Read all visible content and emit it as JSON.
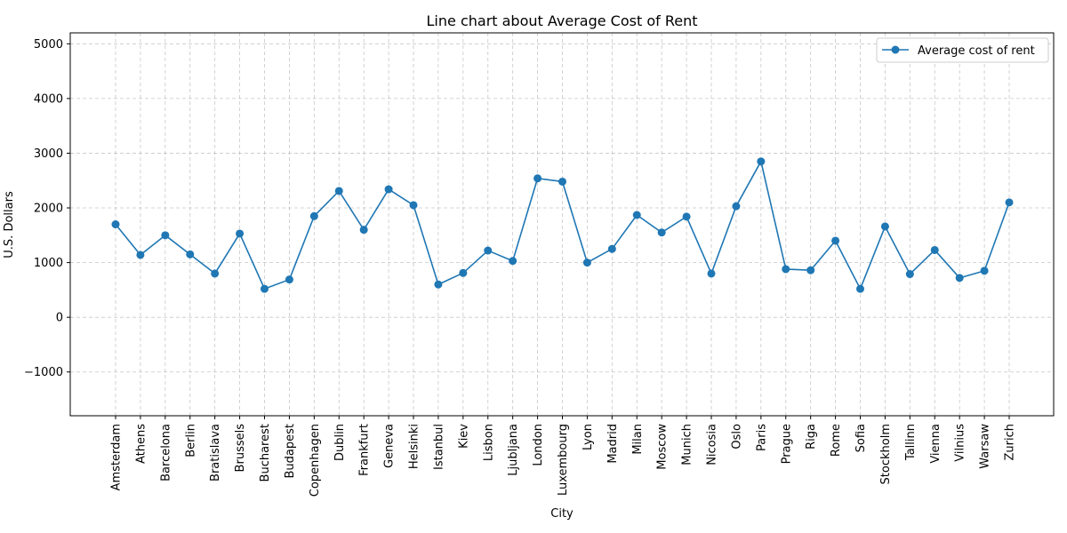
{
  "chart_data": {
    "type": "line",
    "title": "Line chart about Average Cost of Rent",
    "xlabel": "City",
    "ylabel": "U.S. Dollars",
    "ylim": [
      -1800,
      5200
    ],
    "yticks": [
      -1000,
      0,
      1000,
      2000,
      3000,
      4000,
      5000
    ],
    "grid": true,
    "legend_position": "top-right",
    "categories": [
      "Amsterdam",
      "Athens",
      "Barcelona",
      "Berlin",
      "Bratislava",
      "Brussels",
      "Bucharest",
      "Budapest",
      "Copenhagen",
      "Dublin",
      "Frankfurt",
      "Geneva",
      "Helsinki",
      "Istanbul",
      "Kiev",
      "Lisbon",
      "Ljubljana",
      "London",
      "Luxembourg",
      "Lyon",
      "Madrid",
      "Milan",
      "Moscow",
      "Munich",
      "Nicosia",
      "Oslo",
      "Paris",
      "Prague",
      "Riga",
      "Rome",
      "Sofia",
      "Stockholm",
      "Tallinn",
      "Vienna",
      "Vilnius",
      "Warsaw",
      "Zurich"
    ],
    "series": [
      {
        "name": "Average cost of rent",
        "color": "#1f77b4",
        "values": [
          1700,
          1140,
          1500,
          1150,
          800,
          1530,
          520,
          690,
          1850,
          2310,
          1600,
          2340,
          2050,
          600,
          810,
          1220,
          1030,
          2540,
          2480,
          1000,
          1250,
          1870,
          1550,
          1840,
          800,
          2030,
          2850,
          880,
          860,
          1400,
          520,
          1660,
          790,
          1230,
          720,
          850,
          2100
        ]
      }
    ]
  }
}
